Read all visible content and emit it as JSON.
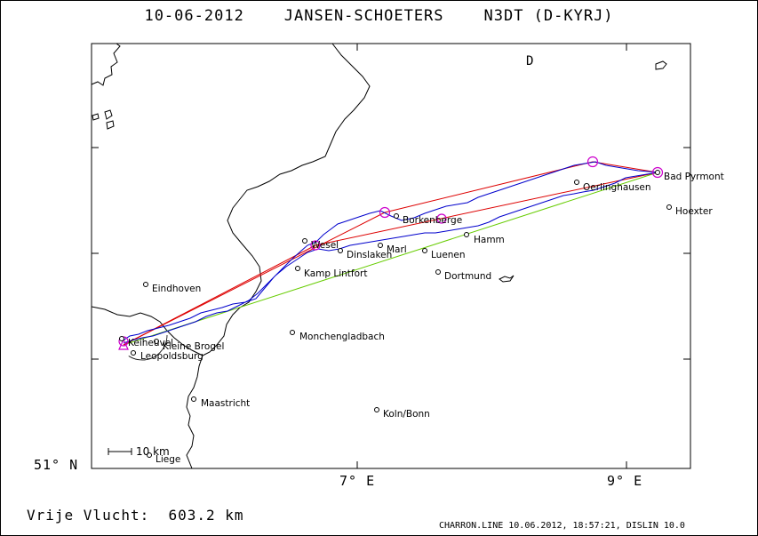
{
  "header": {
    "date": "10-06-2012",
    "pilot": "JANSEN-SCHOETERS",
    "callsign": "N3DT (D-KYRJ)"
  },
  "map": {
    "country_label": "D",
    "lat_label": "51° N",
    "lon_labels": [
      "7° E",
      "9° E"
    ],
    "scale_label": "10 km",
    "track_color": "#0000cc",
    "leg_color": "#dd0000",
    "straight_color": "#66cc00",
    "turnpoint_color": "#cc00cc",
    "cities": [
      {
        "name": "Bad Pyrmont"
      },
      {
        "name": "Hoexter"
      },
      {
        "name": "Oerlinghausen"
      },
      {
        "name": "Borkenberge"
      },
      {
        "name": "Hamm"
      },
      {
        "name": "Wesel"
      },
      {
        "name": "Marl"
      },
      {
        "name": "Dinslaken"
      },
      {
        "name": "Luenen"
      },
      {
        "name": "Kamp Lintfort"
      },
      {
        "name": "Dortmund"
      },
      {
        "name": "Eindhoven"
      },
      {
        "name": "Monchengladbach"
      },
      {
        "name": "Keiheuvel"
      },
      {
        "name": "Kleine Brogel"
      },
      {
        "name": "Leopoldsburg"
      },
      {
        "name": "Maastricht"
      },
      {
        "name": "Koln/Bonn"
      },
      {
        "name": "Liege"
      }
    ]
  },
  "flight": {
    "distance_label": "Vrije Vlucht:",
    "distance_value": "603.2 km"
  },
  "footer": {
    "credit": "CHARRON.LINE 10.06.2012, 18:57:21, DISLIN 10.0"
  }
}
